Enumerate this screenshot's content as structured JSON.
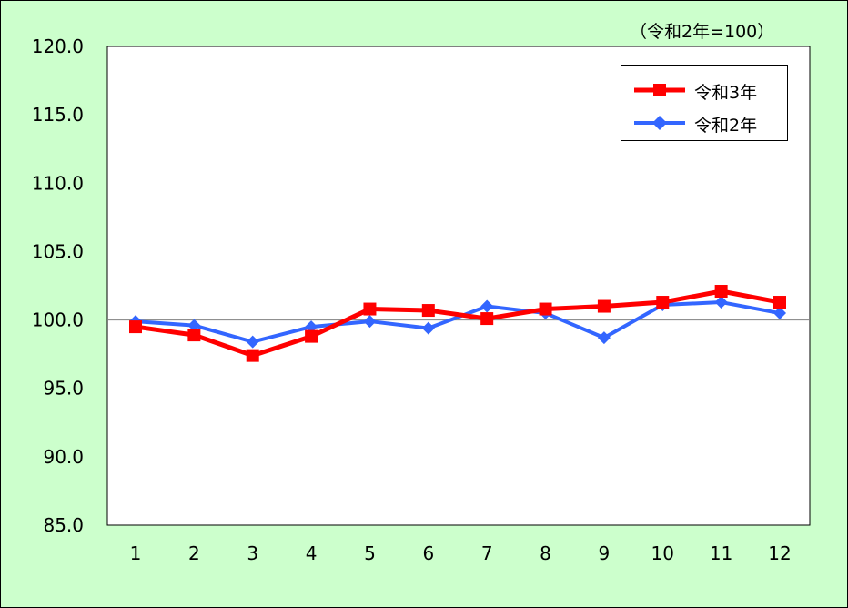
{
  "chart_data": {
    "type": "line",
    "title": "",
    "unit_note": "（令和2年=100）",
    "xlabel": "",
    "ylabel": "",
    "categories": [
      "1",
      "2",
      "3",
      "4",
      "5",
      "6",
      "7",
      "8",
      "9",
      "10",
      "11",
      "12"
    ],
    "ylim": [
      85,
      120
    ],
    "yticks": [
      "85.0",
      "90.0",
      "95.0",
      "100.0",
      "105.0",
      "110.0",
      "115.0",
      "120.0"
    ],
    "reference_line": 100,
    "grid": false,
    "legend_position": "top-right",
    "series": [
      {
        "name": "令和3年",
        "color": "#ff0000",
        "marker": "square",
        "values": [
          99.5,
          98.9,
          97.4,
          98.8,
          100.8,
          100.7,
          100.1,
          100.8,
          101.0,
          101.3,
          102.1,
          101.3
        ]
      },
      {
        "name": "令和2年",
        "color": "#3366ff",
        "marker": "diamond",
        "values": [
          99.9,
          99.6,
          98.4,
          99.5,
          99.9,
          99.4,
          101.0,
          100.5,
          98.7,
          101.1,
          101.3,
          100.5
        ]
      }
    ]
  }
}
